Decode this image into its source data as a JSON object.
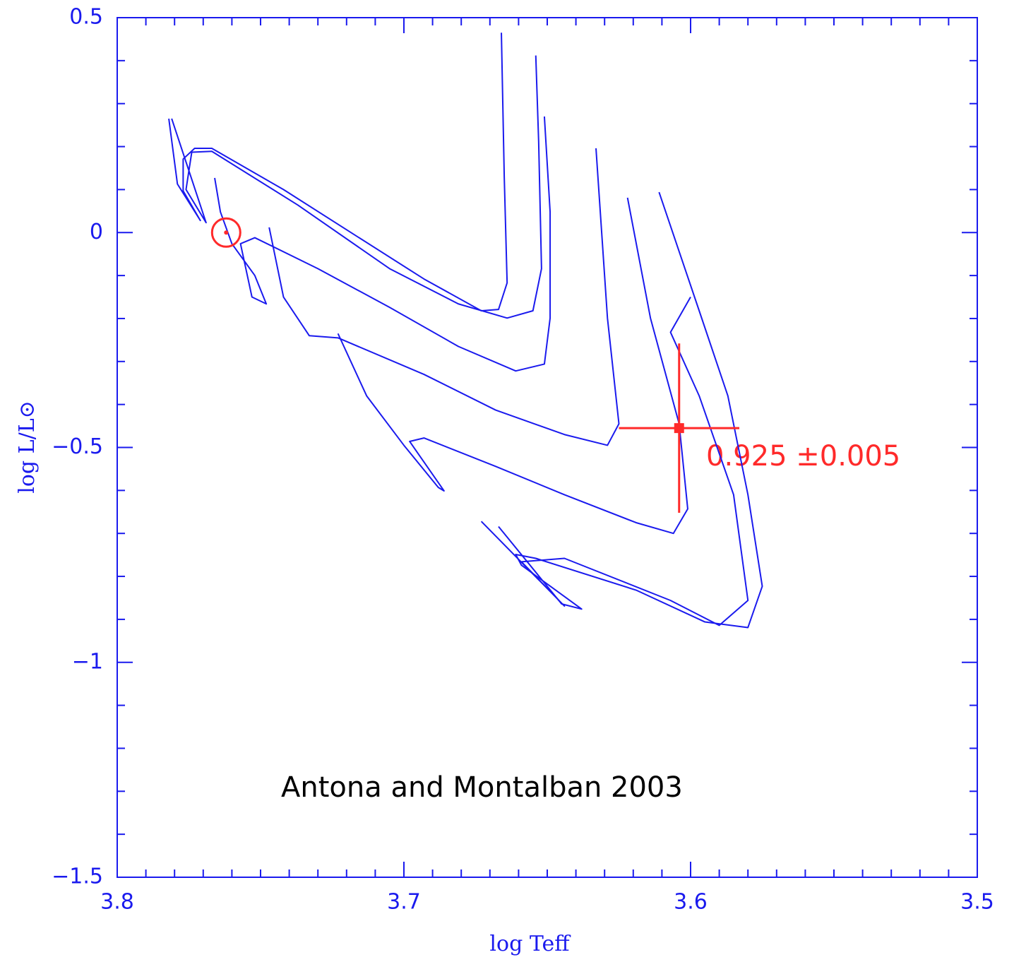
{
  "chart_data": {
    "type": "line",
    "xlabel": "log Teff",
    "ylabel": "log L/L⊙",
    "xlim": [
      3.8,
      3.5
    ],
    "ylim": [
      -1.5,
      0.5
    ],
    "xticks": [
      3.8,
      3.7,
      3.6,
      3.5
    ],
    "yticks": [
      {
        "value": -1.5,
        "label": "−1.5"
      },
      {
        "value": -1,
        "label": "−1"
      },
      {
        "value": -0.5,
        "label": "−0.5"
      },
      0,
      0.5
    ],
    "xminor_ticks": [
      3.79,
      3.78,
      3.77,
      3.76,
      3.75,
      3.74,
      3.73,
      3.72,
      3.71,
      3.69,
      3.68,
      3.67,
      3.66,
      3.65,
      3.64,
      3.63,
      3.62,
      3.61,
      3.59,
      3.58,
      3.57,
      3.56,
      3.55,
      3.54,
      3.53,
      3.52,
      3.51
    ],
    "yminor_ticks": [
      -1.4,
      -1.3,
      -1.2,
      -1.1,
      -0.9,
      -0.8,
      -0.7,
      -0.6,
      -0.4,
      -0.3,
      -0.2,
      -0.1,
      0.1,
      0.2,
      0.3,
      0.4
    ],
    "series": [
      {
        "color": "#1a1aee",
        "x": [
          3.782,
          3.779,
          3.771,
          3.777,
          3.777,
          3.773,
          3.767,
          3.742,
          3.718,
          3.693,
          3.673,
          3.667,
          3.664,
          3.665,
          3.666
        ],
        "values": [
          0.265,
          0.113,
          0.028,
          0.097,
          0.171,
          0.196,
          0.196,
          0.1,
          -0.002,
          -0.108,
          -0.182,
          -0.179,
          -0.117,
          0.13,
          0.465
        ]
      },
      {
        "color": "#1a1aee",
        "x": [
          3.781,
          3.769,
          3.776,
          3.774,
          3.767,
          3.737,
          3.705,
          3.681,
          3.664,
          3.655,
          3.652,
          3.653,
          3.654
        ],
        "values": [
          0.265,
          0.023,
          0.1,
          0.187,
          0.189,
          0.064,
          -0.084,
          -0.166,
          -0.199,
          -0.182,
          -0.084,
          0.212,
          0.412
        ]
      },
      {
        "color": "#1a1aee",
        "x": [
          3.766,
          3.764,
          3.76,
          3.752,
          3.748,
          3.753,
          3.757,
          3.752,
          3.73,
          3.705,
          3.681,
          3.661,
          3.651,
          3.649,
          3.649,
          3.651
        ],
        "values": [
          0.127,
          0.048,
          -0.026,
          -0.1,
          -0.166,
          -0.15,
          -0.026,
          -0.012,
          -0.084,
          -0.174,
          -0.265,
          -0.322,
          -0.306,
          -0.199,
          0.048,
          0.27
        ]
      },
      {
        "color": "#1a1aee",
        "x": [
          3.747,
          3.742,
          3.733,
          3.723,
          3.693,
          3.668,
          3.644,
          3.629,
          3.625,
          3.629,
          3.633
        ],
        "values": [
          0.012,
          -0.15,
          -0.24,
          -0.245,
          -0.33,
          -0.413,
          -0.47,
          -0.495,
          -0.445,
          -0.199,
          0.196
        ]
      },
      {
        "color": "#1a1aee",
        "x": [
          3.723,
          3.713,
          3.7,
          3.688,
          3.686,
          3.698,
          3.693,
          3.668,
          3.644,
          3.619,
          3.606,
          3.601,
          3.604,
          3.614,
          3.622
        ],
        "values": [
          -0.235,
          -0.38,
          -0.495,
          -0.593,
          -0.601,
          -0.486,
          -0.478,
          -0.544,
          -0.61,
          -0.675,
          -0.7,
          -0.643,
          -0.445,
          -0.199,
          0.081
        ]
      },
      {
        "color": "#1a1aee",
        "x": [
          3.667,
          3.645,
          3.638,
          3.659,
          3.661,
          3.654,
          3.619,
          3.595,
          3.58,
          3.575,
          3.58,
          3.587,
          3.597,
          3.611
        ],
        "values": [
          -0.684,
          -0.864,
          -0.876,
          -0.774,
          -0.749,
          -0.758,
          -0.832,
          -0.906,
          -0.919,
          -0.823,
          -0.61,
          -0.38,
          -0.182,
          0.094
        ]
      },
      {
        "color": "#1a1aee",
        "x": [
          3.673,
          3.644,
          3.659,
          3.644,
          3.607,
          3.59,
          3.58,
          3.585,
          3.597,
          3.607,
          3.6
        ],
        "values": [
          -0.672,
          -0.869,
          -0.766,
          -0.758,
          -0.856,
          -0.914,
          -0.856,
          -0.61,
          -0.38,
          -0.232,
          -0.15
        ]
      }
    ],
    "point": {
      "x": 3.604,
      "y": -0.455,
      "xerr": 0.021,
      "yerr": 0.197,
      "color": "#ff2a2a"
    },
    "sun": {
      "x": 3.762,
      "y": 0,
      "color": "#ff2a2a"
    },
    "annotations": [
      "0.925 ±0.005",
      "Antona and Montalban 2003"
    ],
    "axis_color": "#1a1aee"
  }
}
